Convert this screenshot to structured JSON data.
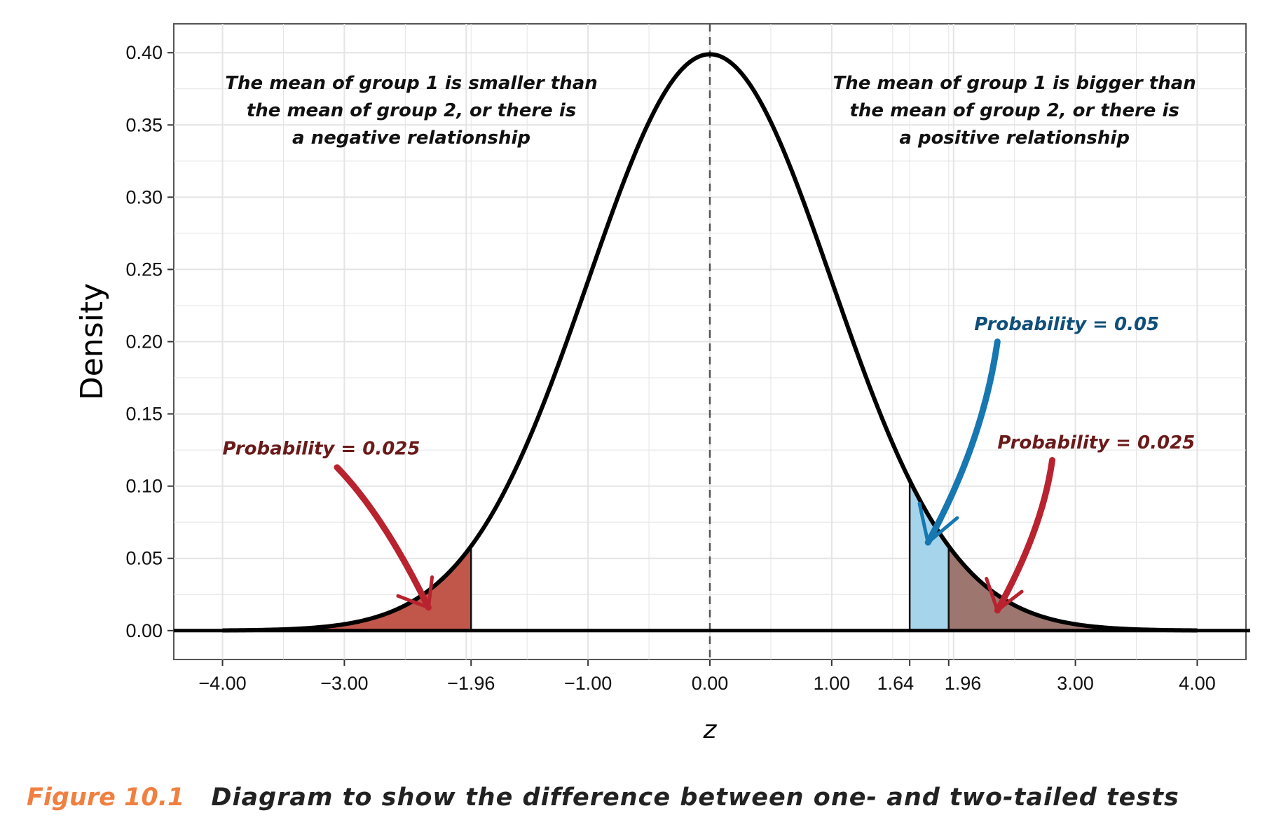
{
  "chart_data": {
    "type": "area",
    "distribution": "standard normal density",
    "xlabel": "z",
    "ylabel": "Density",
    "xlim": [
      -4.4,
      4.4
    ],
    "ylim": [
      -0.02,
      0.42
    ],
    "x_ticks": [
      {
        "value": -4.0,
        "label": "−4.00"
      },
      {
        "value": -3.0,
        "label": "−3.00"
      },
      {
        "value": -1.96,
        "label": "−1.96"
      },
      {
        "value": -1.0,
        "label": "−1.00"
      },
      {
        "value": 0.0,
        "label": "0.00"
      },
      {
        "value": 1.0,
        "label": "1.00"
      },
      {
        "value": 1.64,
        "label": "1.64"
      },
      {
        "value": 1.96,
        "label": "1.96"
      },
      {
        "value": 3.0,
        "label": "3.00"
      },
      {
        "value": 4.0,
        "label": "4.00"
      }
    ],
    "y_ticks": [
      {
        "value": 0.0,
        "label": "0.00"
      },
      {
        "value": 0.05,
        "label": "0.05"
      },
      {
        "value": 0.1,
        "label": "0.10"
      },
      {
        "value": 0.15,
        "label": "0.15"
      },
      {
        "value": 0.2,
        "label": "0.20"
      },
      {
        "value": 0.25,
        "label": "0.25"
      },
      {
        "value": 0.3,
        "label": "0.30"
      },
      {
        "value": 0.35,
        "label": "0.35"
      },
      {
        "value": 0.4,
        "label": "0.40"
      }
    ],
    "grid": true,
    "curve_range": [
      -4.0,
      4.0
    ],
    "mean_line": 0.0,
    "shaded_regions": [
      {
        "from": -4.0,
        "to": -1.96,
        "color": "#c0574a",
        "label": "Probability = 0.025",
        "label_color": "#6b1a1a",
        "arrow_color": "#b8232f"
      },
      {
        "from": 1.64,
        "to": 1.96,
        "color": "#a6d4ea",
        "label": "Probability = 0.05",
        "label_color": "#0f4f7a",
        "arrow_color": "#1777b0"
      },
      {
        "from": 1.96,
        "to": 4.0,
        "color": "#9e7670",
        "label": "Probability = 0.025",
        "label_color": "#6b1a1a",
        "arrow_color": "#b8232f"
      }
    ],
    "annotations": [
      {
        "lines": [
          "The mean of group 1 is smaller than",
          "the mean of group 2, or there is",
          "a negative relationship"
        ],
        "x": -2.45,
        "y": 0.375
      },
      {
        "lines": [
          "The mean of group 1 is bigger than",
          "the mean of group 2, or there is",
          "a positive relationship"
        ],
        "x": 2.5,
        "y": 0.375
      }
    ]
  },
  "caption": {
    "figure_number": "Figure 10.1",
    "text": "Diagram to show the difference between one- and two-tailed tests",
    "number_color": "#f08040"
  }
}
